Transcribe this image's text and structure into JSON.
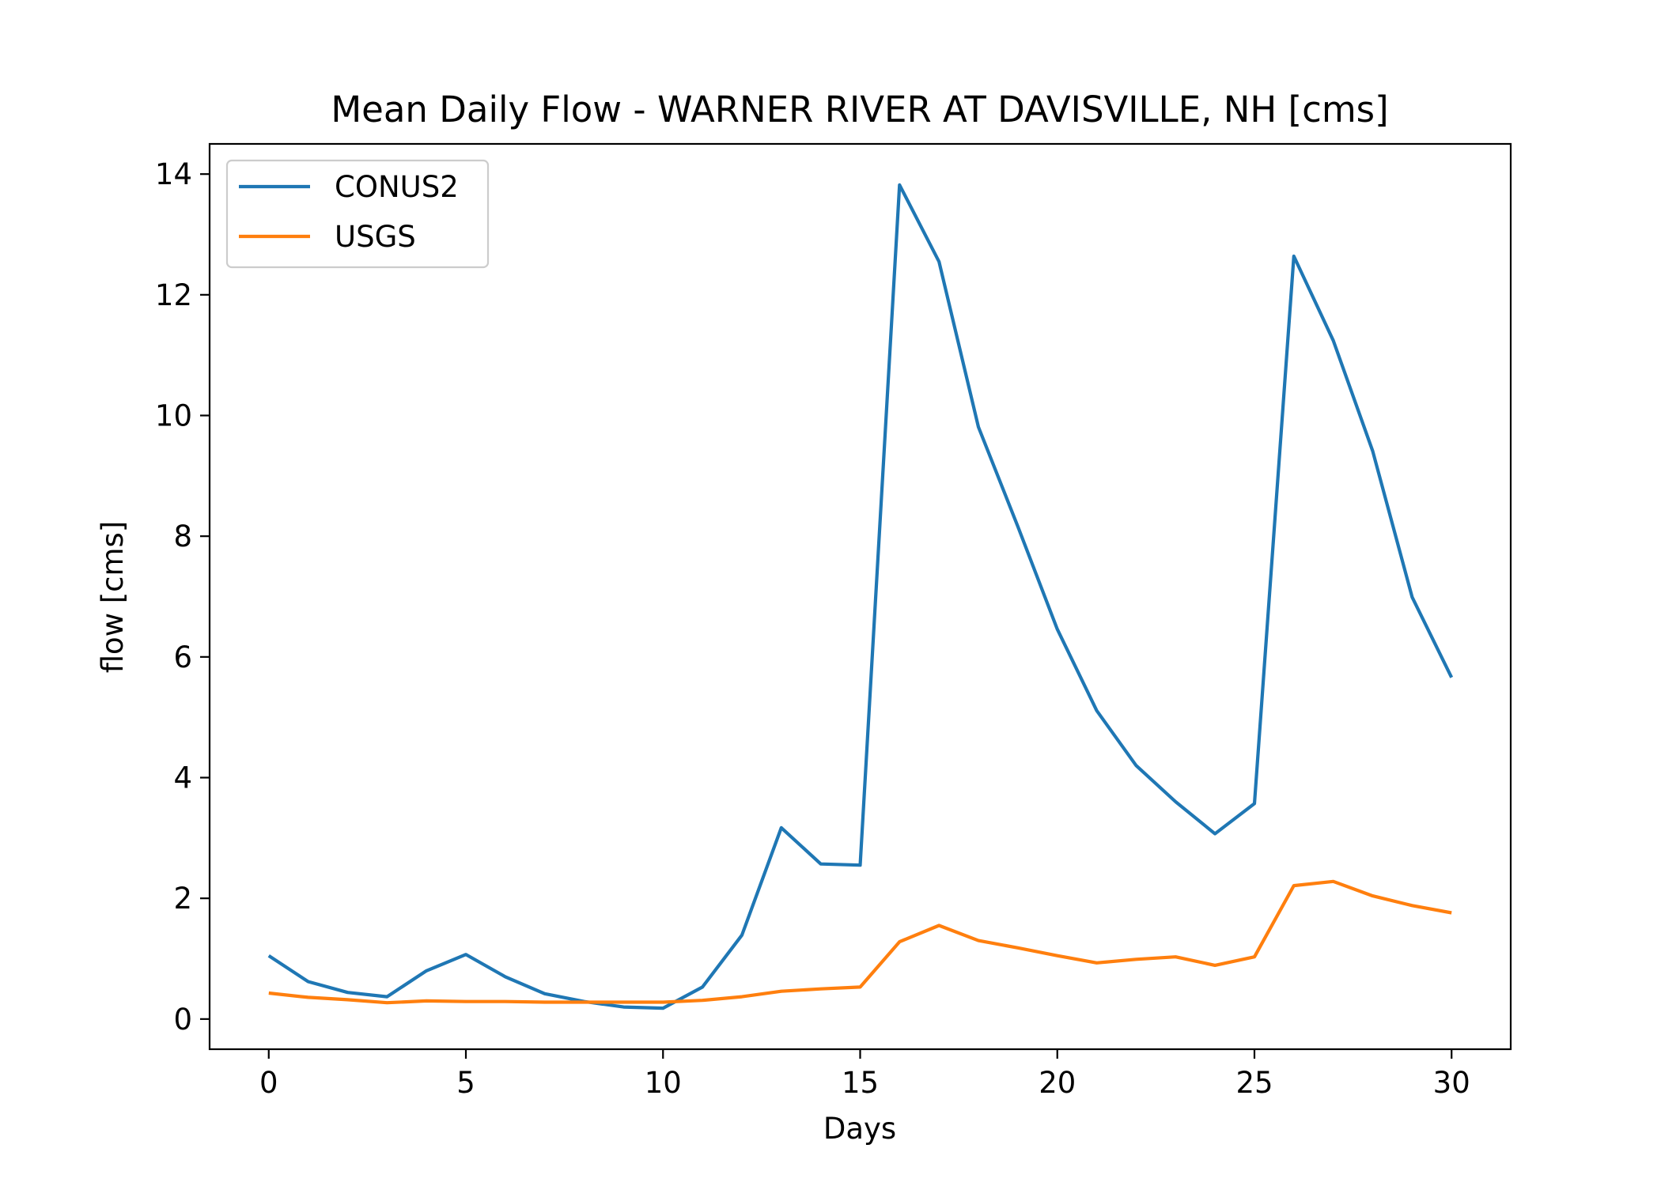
{
  "chart_data": {
    "type": "line",
    "title": "Mean Daily Flow - WARNER RIVER AT DAVISVILLE, NH [cms]",
    "xlabel": "Days",
    "ylabel": "flow [cms]",
    "xlim": [
      -1.5,
      31.5
    ],
    "ylim": [
      -0.5,
      14.5
    ],
    "xticks": [
      0,
      5,
      10,
      15,
      20,
      25,
      30
    ],
    "yticks": [
      0,
      2,
      4,
      6,
      8,
      10,
      12,
      14
    ],
    "grid": false,
    "legend_position": "top-left",
    "x": [
      0,
      1,
      2,
      3,
      4,
      5,
      6,
      7,
      8,
      9,
      10,
      11,
      12,
      13,
      14,
      15,
      16,
      17,
      18,
      19,
      20,
      21,
      22,
      23,
      24,
      25,
      26,
      27,
      28,
      29,
      30
    ],
    "series": [
      {
        "name": "CONUS2",
        "color": "#1f77b4",
        "values": [
          1.05,
          0.62,
          0.44,
          0.37,
          0.8,
          1.07,
          0.7,
          0.42,
          0.29,
          0.2,
          0.18,
          0.53,
          1.39,
          3.17,
          2.57,
          2.55,
          13.82,
          12.55,
          9.81,
          8.16,
          6.46,
          5.11,
          4.2,
          3.6,
          3.07,
          3.57,
          12.64,
          11.24,
          9.41,
          6.99,
          5.66
        ]
      },
      {
        "name": "USGS",
        "color": "#ff7f0e",
        "values": [
          0.43,
          0.36,
          0.32,
          0.27,
          0.3,
          0.29,
          0.29,
          0.28,
          0.28,
          0.28,
          0.28,
          0.31,
          0.37,
          0.46,
          0.5,
          0.53,
          1.28,
          1.55,
          1.3,
          1.18,
          1.05,
          0.93,
          0.99,
          1.03,
          0.89,
          1.03,
          2.21,
          2.28,
          2.04,
          1.88,
          1.76
        ]
      }
    ]
  }
}
